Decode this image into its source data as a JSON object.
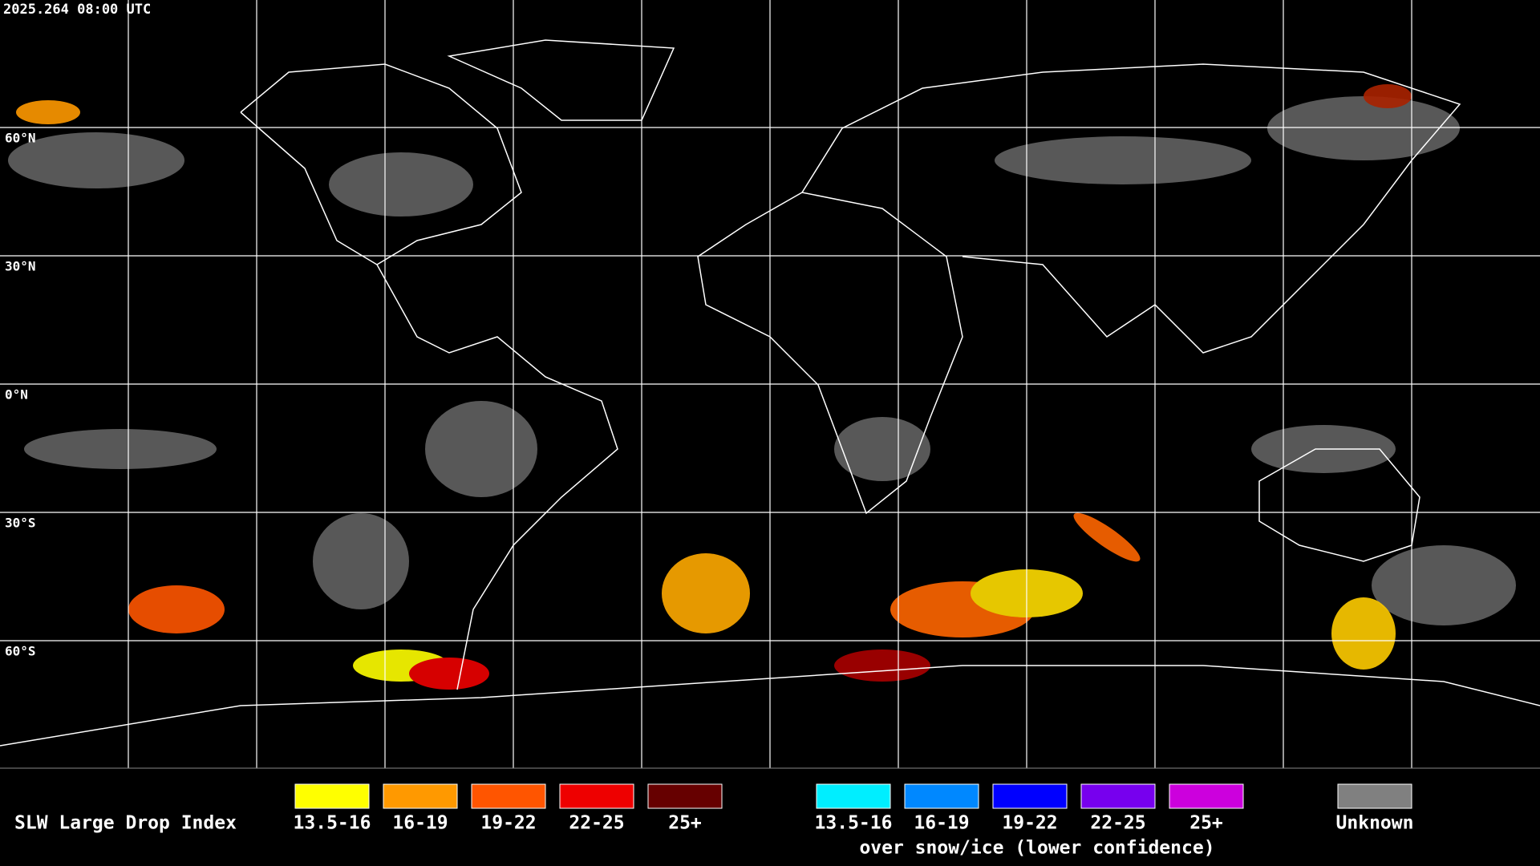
{
  "header": {
    "timestamp": "2025.264 08:00 UTC"
  },
  "map": {
    "latitude_labels": [
      "60°N",
      "30°N",
      "0°N",
      "30°S",
      "60°S"
    ]
  },
  "legend": {
    "title": "SLW Large Drop Index",
    "liquid": [
      {
        "label": "13.5-16",
        "color": "#ffff00"
      },
      {
        "label": "16-19",
        "color": "#ff9900"
      },
      {
        "label": "19-22",
        "color": "#ff5500"
      },
      {
        "label": "22-25",
        "color": "#ee0000"
      },
      {
        "label": "25+",
        "color": "#660000"
      }
    ],
    "snow_ice": [
      {
        "label": "13.5-16",
        "color": "#00eeff"
      },
      {
        "label": "16-19",
        "color": "#0088ff"
      },
      {
        "label": "19-22",
        "color": "#0000ff"
      },
      {
        "label": "22-25",
        "color": "#7700ee"
      },
      {
        "label": "25+",
        "color": "#cc00dd"
      }
    ],
    "snow_ice_note": "over snow/ice (lower confidence)",
    "unknown": {
      "label": "Unknown",
      "color": "#808080"
    }
  }
}
